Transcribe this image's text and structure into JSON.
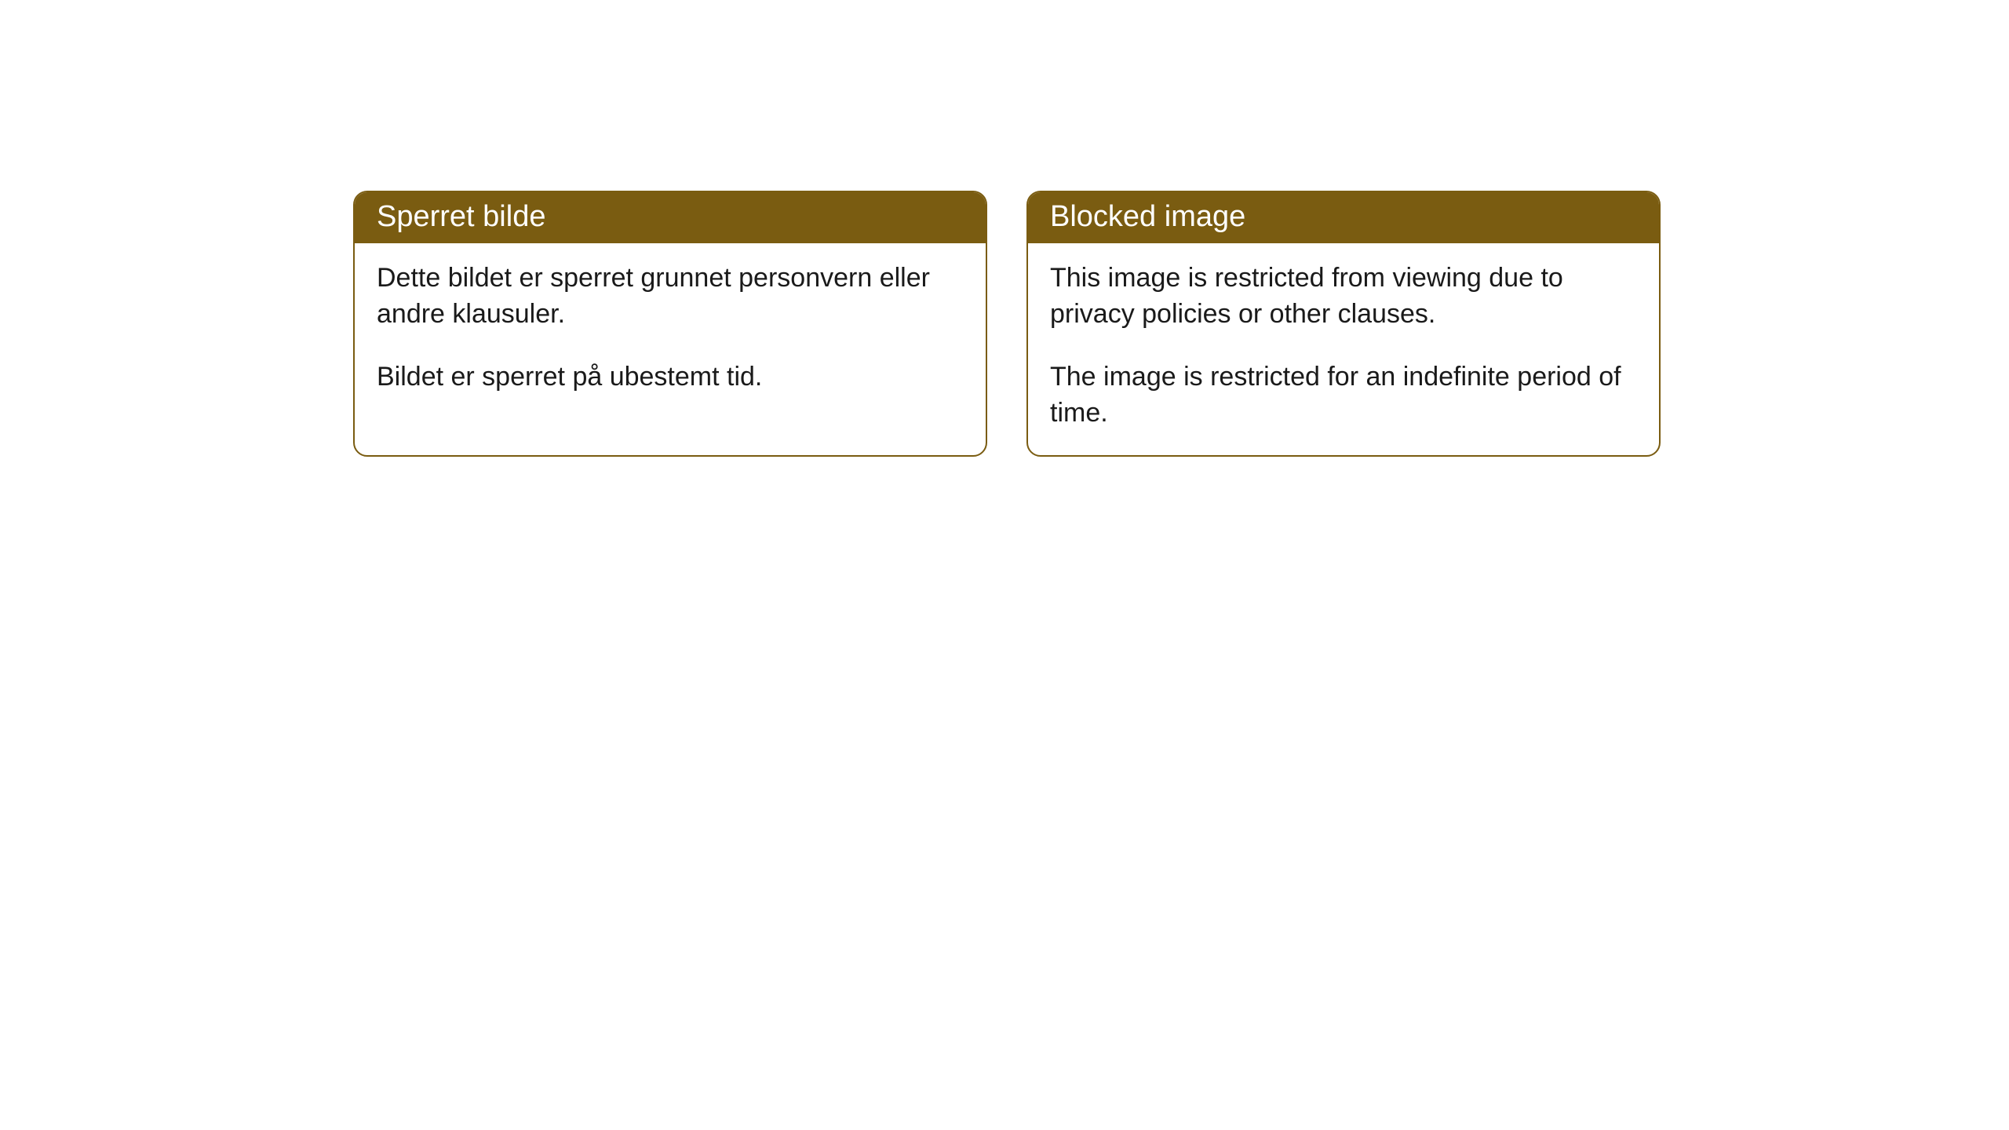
{
  "cards": [
    {
      "title": "Sperret bilde",
      "p1": "Dette bildet er sperret grunnet personvern eller andre klausuler.",
      "p2": "Bildet er sperret på ubestemt tid."
    },
    {
      "title": "Blocked image",
      "p1": "This image is restricted from viewing due to privacy policies or other clauses.",
      "p2": "The image is restricted for an indefinite period of time."
    }
  ],
  "colors": {
    "header_bg": "#7a5c11",
    "border": "#7a5c11",
    "header_text": "#ffffff",
    "body_text": "#1a1a1a",
    "background": "#ffffff"
  }
}
